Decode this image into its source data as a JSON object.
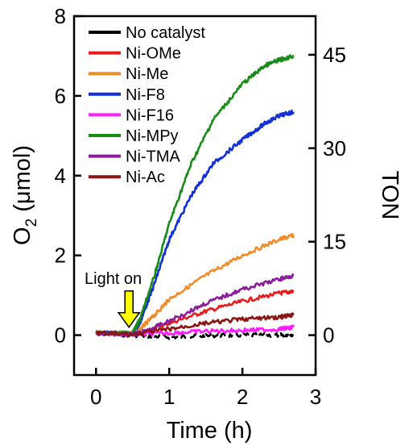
{
  "chart_data": {
    "type": "line",
    "xlabel": "Time (h)",
    "ylabel_main": "O",
    "ylabel_sub": "2",
    "ylabel_unit": " (μmol)",
    "y2label": "TON",
    "xlim": [
      -0.3,
      3.0
    ],
    "ylim": [
      -1,
      8
    ],
    "y2lim": [
      -6.4,
      51.2
    ],
    "xticks": [
      0,
      1,
      2,
      3
    ],
    "yticks": [
      0,
      2,
      4,
      6,
      8
    ],
    "y2ticks": [
      0,
      15,
      30,
      45
    ],
    "grid": false,
    "legend_position": "top-left",
    "annotation": {
      "text": "Light on",
      "x": 0.45,
      "y": 0.2,
      "arrow_color": "#ffff00"
    },
    "series": [
      {
        "name": "No catalyst",
        "color": "#000000",
        "x": [
          0,
          0.5,
          1.0,
          1.5,
          2.0,
          2.5,
          2.7
        ],
        "y": [
          0.05,
          0.0,
          -0.05,
          -0.02,
          0.0,
          0.0,
          0.02
        ]
      },
      {
        "name": "Ni-OMe",
        "color": "#e81c1c",
        "x": [
          0,
          0.5,
          0.6,
          1.0,
          1.5,
          2.0,
          2.5,
          2.7
        ],
        "y": [
          0.05,
          0.02,
          0.05,
          0.3,
          0.6,
          0.85,
          1.05,
          1.1
        ]
      },
      {
        "name": "Ni-Me",
        "color": "#f28c28",
        "x": [
          0,
          0.5,
          0.6,
          0.8,
          1.0,
          1.5,
          2.0,
          2.5,
          2.7
        ],
        "y": [
          0.05,
          0.05,
          0.15,
          0.5,
          0.9,
          1.5,
          2.0,
          2.4,
          2.5
        ]
      },
      {
        "name": "Ni-F8",
        "color": "#1330d6",
        "x": [
          0,
          0.5,
          0.6,
          0.8,
          1.0,
          1.3,
          1.6,
          2.0,
          2.3,
          2.5,
          2.7
        ],
        "y": [
          0.05,
          0.05,
          0.3,
          1.3,
          2.4,
          3.5,
          4.3,
          4.9,
          5.3,
          5.5,
          5.6
        ]
      },
      {
        "name": "Ni-F16",
        "color": "#ff1cff",
        "x": [
          0,
          0.5,
          1.0,
          1.5,
          2.0,
          2.5,
          2.7
        ],
        "y": [
          0.05,
          0.02,
          0.05,
          0.1,
          0.12,
          0.15,
          0.2
        ]
      },
      {
        "name": "Ni-MPy",
        "color": "#188c18",
        "x": [
          0,
          0.5,
          0.6,
          0.8,
          1.0,
          1.3,
          1.6,
          2.0,
          2.3,
          2.5,
          2.7
        ],
        "y": [
          0.05,
          0.05,
          0.4,
          1.5,
          2.8,
          4.3,
          5.4,
          6.3,
          6.75,
          6.9,
          7.0
        ]
      },
      {
        "name": "Ni-TMA",
        "color": "#8c1c9c",
        "x": [
          0,
          0.5,
          0.6,
          1.0,
          1.5,
          2.0,
          2.5,
          2.7
        ],
        "y": [
          0.05,
          0.02,
          0.05,
          0.35,
          0.8,
          1.15,
          1.4,
          1.5
        ]
      },
      {
        "name": "Ni-Ac",
        "color": "#8c1414",
        "x": [
          0,
          0.5,
          1.0,
          1.5,
          2.0,
          2.5,
          2.7
        ],
        "y": [
          0.05,
          0.02,
          0.15,
          0.3,
          0.4,
          0.45,
          0.5
        ]
      }
    ]
  }
}
